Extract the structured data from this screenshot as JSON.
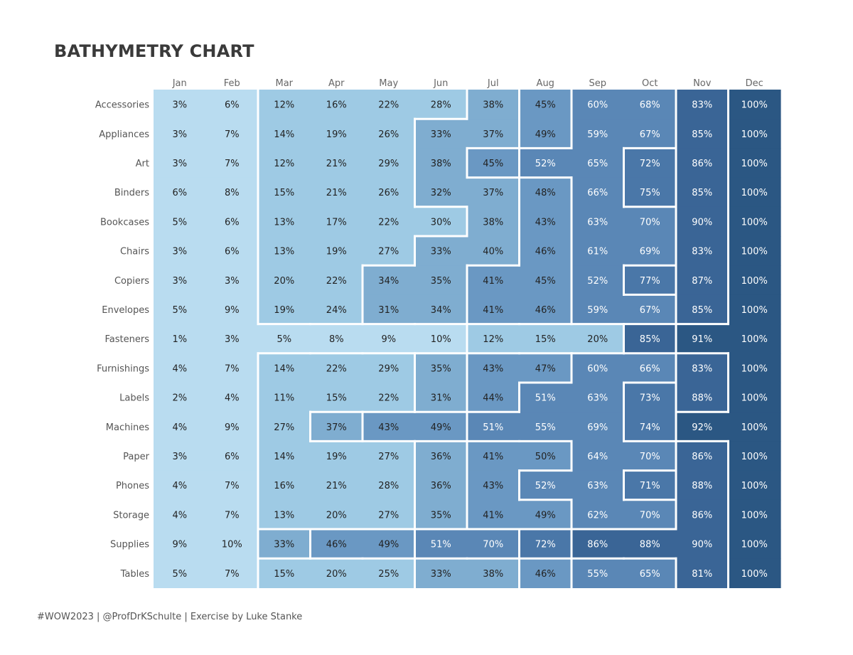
{
  "title": "BATHYMETRY CHART",
  "footer": "#WOW2023 | @ProfDrKSchulte | Exercise by Luke Stanke",
  "chart_data": {
    "type": "heatmap",
    "title": "BATHYMETRY CHART",
    "months": [
      "Jan",
      "Feb",
      "Mar",
      "Apr",
      "May",
      "Jun",
      "Jul",
      "Aug",
      "Sep",
      "Oct",
      "Nov",
      "Dec"
    ],
    "categories": [
      "Accessories",
      "Appliances",
      "Art",
      "Binders",
      "Bookcases",
      "Chairs",
      "Copiers",
      "Envelopes",
      "Fasteners",
      "Furnishings",
      "Labels",
      "Machines",
      "Paper",
      "Phones",
      "Storage",
      "Supplies",
      "Tables"
    ],
    "values": [
      [
        3,
        6,
        12,
        16,
        22,
        28,
        38,
        45,
        60,
        68,
        83,
        100
      ],
      [
        3,
        7,
        14,
        19,
        26,
        33,
        37,
        49,
        59,
        67,
        85,
        100
      ],
      [
        3,
        7,
        12,
        21,
        29,
        38,
        45,
        52,
        65,
        72,
        86,
        100
      ],
      [
        6,
        8,
        15,
        21,
        26,
        32,
        37,
        48,
        66,
        75,
        85,
        100
      ],
      [
        5,
        6,
        13,
        17,
        22,
        30,
        38,
        43,
        63,
        70,
        90,
        100
      ],
      [
        3,
        6,
        13,
        19,
        27,
        33,
        40,
        46,
        61,
        69,
        83,
        100
      ],
      [
        3,
        3,
        20,
        22,
        34,
        35,
        41,
        45,
        52,
        77,
        87,
        100
      ],
      [
        5,
        9,
        19,
        24,
        31,
        34,
        41,
        46,
        59,
        67,
        85,
        100
      ],
      [
        1,
        3,
        5,
        8,
        9,
        10,
        12,
        15,
        20,
        85,
        91,
        100
      ],
      [
        4,
        7,
        14,
        22,
        29,
        35,
        43,
        47,
        60,
        66,
        83,
        100
      ],
      [
        2,
        4,
        11,
        15,
        22,
        31,
        44,
        51,
        63,
        73,
        88,
        100
      ],
      [
        4,
        9,
        27,
        37,
        43,
        49,
        51,
        55,
        69,
        74,
        92,
        100
      ],
      [
        3,
        6,
        14,
        19,
        27,
        36,
        41,
        50,
        64,
        70,
        86,
        100
      ],
      [
        4,
        7,
        16,
        21,
        28,
        36,
        43,
        52,
        63,
        71,
        88,
        100
      ],
      [
        4,
        7,
        13,
        20,
        27,
        35,
        41,
        49,
        62,
        70,
        86,
        100
      ],
      [
        9,
        10,
        33,
        46,
        49,
        51,
        70,
        72,
        86,
        88,
        90,
        100
      ],
      [
        5,
        7,
        15,
        20,
        25,
        33,
        38,
        46,
        55,
        65,
        81,
        100
      ]
    ],
    "value_suffix": "%",
    "color_scale": [
      "#b9dcf0",
      "#9ecae4",
      "#7fadd0",
      "#6a98c3",
      "#5a87b6",
      "#4a77a8",
      "#3a6596",
      "#2b5783"
    ]
  }
}
